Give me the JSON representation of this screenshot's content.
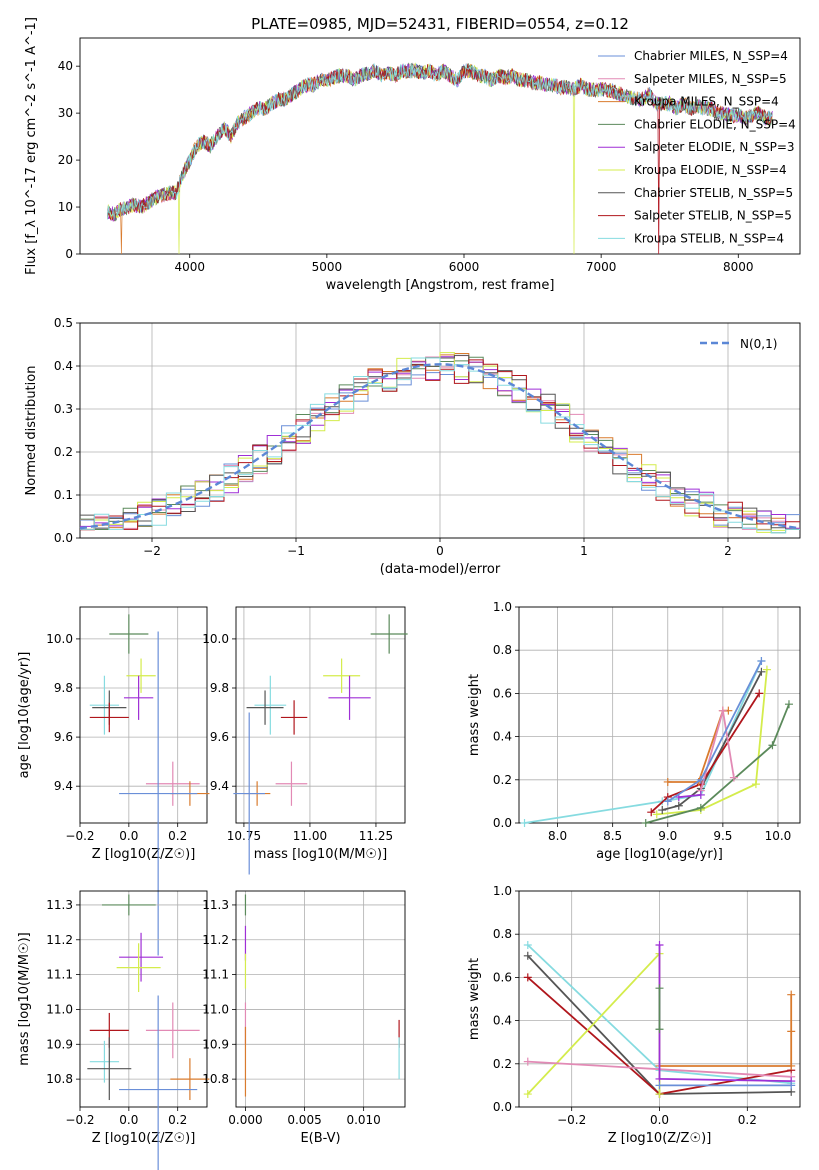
{
  "title": "PLATE=0985, MJD=52431, FIBERID=0554, z=0.12",
  "chart_data": [
    {
      "id": "spectrum",
      "type": "line",
      "xlabel": "wavelength [Angstrom, rest frame]",
      "ylabel": "Flux [f_λ 10^-17 erg cm^-2 s^-1 A^-1]",
      "xlim": [
        3200,
        8450
      ],
      "ylim": [
        0,
        46
      ],
      "xticks": [
        4000,
        5000,
        6000,
        7000,
        8000
      ],
      "yticks": [
        0,
        10,
        20,
        30,
        40
      ],
      "grid": false,
      "legend": "top-right",
      "spectrum_x": [
        3400,
        3450,
        3500,
        3550,
        3600,
        3650,
        3700,
        3750,
        3800,
        3850,
        3900,
        3950,
        4000,
        4050,
        4100,
        4150,
        4200,
        4250,
        4300,
        4350,
        4400,
        4450,
        4500,
        4550,
        4600,
        4650,
        4700,
        4750,
        4800,
        4850,
        4900,
        4950,
        5000,
        5050,
        5100,
        5150,
        5200,
        5250,
        5300,
        5350,
        5400,
        5450,
        5500,
        5550,
        5600,
        5650,
        5700,
        5750,
        5800,
        5850,
        5900,
        5950,
        6000,
        6050,
        6100,
        6150,
        6200,
        6250,
        6300,
        6350,
        6400,
        6450,
        6500,
        6550,
        6600,
        6650,
        6700,
        6750,
        6800,
        6850,
        6900,
        6950,
        7000,
        7050,
        7100,
        7150,
        7200,
        7250,
        7300,
        7350,
        7400,
        7450,
        7500,
        7550,
        7600,
        7650,
        7700,
        7750,
        7800,
        7850,
        7900,
        7950,
        8000,
        8050,
        8100,
        8150,
        8200,
        8250
      ],
      "spectrum_y": [
        9,
        8.5,
        9.5,
        10,
        10.5,
        10,
        11,
        12,
        12.5,
        13,
        13,
        17,
        20,
        23,
        24,
        23,
        25,
        27,
        25,
        28,
        29,
        30,
        31,
        31,
        32,
        33,
        33,
        34,
        35,
        36,
        36,
        37,
        37,
        37.5,
        38,
        38,
        37,
        38,
        38.5,
        39,
        38,
        38.5,
        38,
        39,
        39,
        39,
        38.5,
        39,
        38,
        39,
        38,
        37,
        39,
        39,
        38,
        38,
        37,
        38,
        37.5,
        38,
        37,
        37,
        36.5,
        36.5,
        36,
        36,
        35.5,
        35.5,
        35,
        36,
        35,
        35,
        35,
        35,
        34.5,
        34,
        33.5,
        33,
        33,
        34,
        32,
        32,
        32,
        31,
        32,
        31,
        31.5,
        31,
        31,
        30,
        30,
        29.5,
        29.5,
        29,
        29.5,
        30,
        29,
        29
      ],
      "series": [
        {
          "name": "Chabrier MILES, N_SSP=4",
          "color": "#6a8fd8"
        },
        {
          "name": "Salpeter MILES, N_SSP=5",
          "color": "#e28ab5"
        },
        {
          "name": "Kroupa MILES, N_SSP=4",
          "color": "#d97b2e"
        },
        {
          "name": "Chabrier ELODIE, N_SSP=4",
          "color": "#5b8a5b"
        },
        {
          "name": "Salpeter ELODIE, N_SSP=3",
          "color": "#9f2fd6"
        },
        {
          "name": "Kroupa ELODIE, N_SSP=4",
          "color": "#d4ec4c"
        },
        {
          "name": "Chabrier STELIB, N_SSP=5",
          "color": "#555555"
        },
        {
          "name": "Salpeter STELIB, N_SSP=5",
          "color": "#b0161c"
        },
        {
          "name": "Kroupa STELIB, N_SSP=4",
          "color": "#86dbe0"
        }
      ]
    },
    {
      "id": "residuals",
      "type": "line",
      "xlabel": "(data-model)/error",
      "ylabel": "Normed distribution",
      "xlim": [
        -2.5,
        2.5
      ],
      "ylim": [
        0,
        0.5
      ],
      "xticks": [
        -2,
        -1,
        0,
        1,
        2
      ],
      "yticks": [
        0.0,
        0.1,
        0.2,
        0.3,
        0.4,
        0.5
      ],
      "grid": true,
      "legend": "top-right",
      "legend_label": "N(0,1)",
      "bin_width": 0.1
    },
    {
      "id": "age_vs_Z",
      "type": "scatter",
      "xlabel": "Z [log10(Z/Z☉)]",
      "ylabel": "age [log10(age/yr)]",
      "xlim": [
        -0.2,
        0.32
      ],
      "ylim": [
        9.25,
        10.13
      ],
      "xticks": [
        -0.2,
        0.0,
        0.2
      ],
      "yticks": [
        9.4,
        9.6,
        9.8,
        10.0
      ],
      "grid": true,
      "points": [
        {
          "x": 0.0,
          "y": 10.02,
          "xerr": 0.08,
          "yerr": 0.08,
          "color": "#5b8a5b"
        },
        {
          "x": 0.05,
          "y": 9.85,
          "xerr": 0.06,
          "yerr": 0.07,
          "color": "#d4ec4c"
        },
        {
          "x": 0.04,
          "y": 9.76,
          "xerr": 0.06,
          "yerr": 0.09,
          "color": "#9f2fd6"
        },
        {
          "x": -0.1,
          "y": 9.73,
          "xerr": 0.06,
          "yerr": 0.12,
          "color": "#86dbe0"
        },
        {
          "x": -0.08,
          "y": 9.72,
          "xerr": 0.07,
          "yerr": 0.07,
          "color": "#555555"
        },
        {
          "x": -0.08,
          "y": 9.68,
          "xerr": 0.08,
          "yerr": 0.06,
          "color": "#b0161c"
        },
        {
          "x": 0.18,
          "y": 9.41,
          "xerr": 0.11,
          "yerr": 0.09,
          "color": "#e28ab5"
        },
        {
          "x": 0.25,
          "y": 9.37,
          "xerr": 0.08,
          "yerr": 0.05,
          "color": "#d97b2e"
        },
        {
          "x": 0.12,
          "y": 9.37,
          "xerr": 0.16,
          "yerr": 0.66,
          "color": "#6a8fd8"
        }
      ]
    },
    {
      "id": "age_vs_mass",
      "type": "scatter",
      "xlabel": "mass [log10(M/M☉)]",
      "ylabel": "",
      "xlim": [
        10.72,
        11.36
      ],
      "ylim": [
        9.25,
        10.13
      ],
      "xticks": [
        10.75,
        11.0,
        11.25
      ],
      "yticks": [
        9.4,
        9.6,
        9.8,
        10.0
      ],
      "grid": true,
      "points": [
        {
          "x": 11.3,
          "y": 10.02,
          "xerr": 0.07,
          "yerr": 0.08,
          "color": "#5b8a5b"
        },
        {
          "x": 11.12,
          "y": 9.85,
          "xerr": 0.07,
          "yerr": 0.07,
          "color": "#d4ec4c"
        },
        {
          "x": 11.15,
          "y": 9.76,
          "xerr": 0.08,
          "yerr": 0.09,
          "color": "#9f2fd6"
        },
        {
          "x": 10.85,
          "y": 9.73,
          "xerr": 0.06,
          "yerr": 0.12,
          "color": "#86dbe0"
        },
        {
          "x": 10.83,
          "y": 9.72,
          "xerr": 0.07,
          "yerr": 0.07,
          "color": "#555555"
        },
        {
          "x": 10.94,
          "y": 9.68,
          "xerr": 0.05,
          "yerr": 0.07,
          "color": "#b0161c"
        },
        {
          "x": 10.93,
          "y": 9.41,
          "xerr": 0.06,
          "yerr": 0.09,
          "color": "#e28ab5"
        },
        {
          "x": 10.8,
          "y": 9.37,
          "xerr": 0.05,
          "yerr": 0.05,
          "color": "#d97b2e"
        },
        {
          "x": 10.77,
          "y": 9.37,
          "xerr": 0.06,
          "yerr": 0.33,
          "color": "#6a8fd8"
        }
      ]
    },
    {
      "id": "weight_vs_age",
      "type": "line",
      "xlabel": "age [log10(age/yr)]",
      "ylabel": "mass weight",
      "xlim": [
        7.65,
        10.2
      ],
      "ylim": [
        0,
        1.0
      ],
      "xticks": [
        8.0,
        8.5,
        9.0,
        9.5,
        10.0
      ],
      "yticks": [
        0.0,
        0.2,
        0.4,
        0.6,
        0.8,
        1.0
      ],
      "grid": true,
      "series": [
        {
          "color": "#86dbe0",
          "x": [
            7.7,
            8.95,
            9.3,
            9.85
          ],
          "y": [
            0.0,
            0.1,
            0.13,
            0.75
          ]
        },
        {
          "color": "#d4ec4c",
          "x": [
            8.9,
            9.3,
            9.8,
            9.9
          ],
          "y": [
            0.04,
            0.06,
            0.18,
            0.71
          ]
        },
        {
          "color": "#5b8a5b",
          "x": [
            8.8,
            9.3,
            9.95,
            10.1
          ],
          "y": [
            0.0,
            0.07,
            0.36,
            0.55
          ]
        },
        {
          "color": "#555555",
          "x": [
            8.95,
            9.1,
            9.3,
            9.85
          ],
          "y": [
            0.06,
            0.08,
            0.16,
            0.7
          ]
        },
        {
          "color": "#b0161c",
          "x": [
            8.85,
            9.0,
            9.3,
            9.83
          ],
          "y": [
            0.05,
            0.12,
            0.18,
            0.6
          ]
        },
        {
          "color": "#d97b2e",
          "x": [
            9.0,
            9.28,
            9.5,
            9.55
          ],
          "y": [
            0.19,
            0.19,
            0.52,
            0.52
          ]
        },
        {
          "color": "#e28ab5",
          "x": [
            9.3,
            9.5,
            9.6
          ],
          "y": [
            0.15,
            0.52,
            0.21
          ]
        },
        {
          "color": "#9f2fd6",
          "x": [
            9.1,
            9.3
          ],
          "y": [
            0.12,
            0.13
          ]
        },
        {
          "color": "#6a8fd8",
          "x": [
            9.0,
            9.3,
            9.85
          ],
          "y": [
            0.1,
            0.2,
            0.75
          ]
        }
      ]
    },
    {
      "id": "mass_vs_Z",
      "type": "scatter",
      "xlabel": "Z [log10(Z/Z☉)]",
      "ylabel": "mass [log10(M/M☉)]",
      "xlim": [
        -0.2,
        0.32
      ],
      "ylim": [
        10.72,
        11.34
      ],
      "xticks": [
        -0.2,
        0.0,
        0.2
      ],
      "yticks": [
        10.8,
        10.9,
        11.0,
        11.1,
        11.2,
        11.3
      ],
      "grid": true,
      "points": [
        {
          "x": 0.0,
          "y": 11.3,
          "xerr": 0.11,
          "yerr": 0.03,
          "color": "#5b8a5b"
        },
        {
          "x": 0.05,
          "y": 11.15,
          "xerr": 0.09,
          "yerr": 0.07,
          "color": "#9f2fd6"
        },
        {
          "x": 0.04,
          "y": 11.12,
          "xerr": 0.09,
          "yerr": 0.07,
          "color": "#d4ec4c"
        },
        {
          "x": -0.08,
          "y": 10.94,
          "xerr": 0.08,
          "yerr": 0.05,
          "color": "#b0161c"
        },
        {
          "x": 0.18,
          "y": 10.94,
          "xerr": 0.11,
          "yerr": 0.08,
          "color": "#e28ab5"
        },
        {
          "x": -0.1,
          "y": 10.85,
          "xerr": 0.06,
          "yerr": 0.06,
          "color": "#86dbe0"
        },
        {
          "x": -0.08,
          "y": 10.83,
          "xerr": 0.09,
          "yerr": 0.09,
          "color": "#555555"
        },
        {
          "x": 0.25,
          "y": 10.8,
          "xerr": 0.08,
          "yerr": 0.06,
          "color": "#d97b2e"
        },
        {
          "x": 0.12,
          "y": 10.77,
          "xerr": 0.16,
          "yerr": 0.27,
          "color": "#6a8fd8"
        }
      ]
    },
    {
      "id": "mass_vs_EBV",
      "type": "scatter",
      "xlabel": "E(B-V)",
      "ylabel": "",
      "xlim": [
        -0.0008,
        0.0135
      ],
      "ylim": [
        10.72,
        11.34
      ],
      "xticks": [
        0.0,
        0.005,
        0.01
      ],
      "xtick_labels": [
        "0.000",
        "0.005",
        "0.010"
      ],
      "yticks": [
        10.8,
        10.9,
        11.0,
        11.1,
        11.2,
        11.3
      ],
      "grid": true,
      "points": [
        {
          "x": 0.0,
          "y": 11.3,
          "xerr": 0.0,
          "yerr": 0.03,
          "color": "#5b8a5b"
        },
        {
          "x": 0.0,
          "y": 11.19,
          "xerr": 0.0,
          "yerr": 0.05,
          "color": "#9f2fd6"
        },
        {
          "x": 0.0,
          "y": 11.11,
          "xerr": 0.0,
          "yerr": 0.05,
          "color": "#d4ec4c"
        },
        {
          "x": 0.0,
          "y": 10.96,
          "xerr": 0.0,
          "yerr": 0.06,
          "color": "#e28ab5"
        },
        {
          "x": 0.0,
          "y": 10.85,
          "xerr": 0.0,
          "yerr": 0.1,
          "color": "#d97b2e"
        },
        {
          "x": 0.013,
          "y": 10.93,
          "xerr": 0.0,
          "yerr": 0.04,
          "color": "#b0161c"
        },
        {
          "x": 0.013,
          "y": 10.86,
          "xerr": 0.0,
          "yerr": 0.06,
          "color": "#86dbe0"
        }
      ]
    },
    {
      "id": "weight_vs_Z",
      "type": "line",
      "xlabel": "Z [log10(Z/Z☉)]",
      "ylabel": "mass weight",
      "xlim": [
        -0.32,
        0.32
      ],
      "ylim": [
        0,
        1.0
      ],
      "xticks": [
        -0.2,
        0.0,
        0.2
      ],
      "yticks": [
        0.0,
        0.2,
        0.4,
        0.6,
        0.8,
        1.0
      ],
      "grid": true,
      "series": [
        {
          "color": "#86dbe0",
          "x": [
            -0.3,
            0.0,
            0.3
          ],
          "y": [
            0.75,
            0.17,
            0.11
          ]
        },
        {
          "color": "#555555",
          "x": [
            -0.3,
            0.0,
            0.3
          ],
          "y": [
            0.7,
            0.06,
            0.07
          ]
        },
        {
          "color": "#b0161c",
          "x": [
            -0.3,
            0.0,
            0.3
          ],
          "y": [
            0.6,
            0.06,
            0.17
          ]
        },
        {
          "color": "#d4ec4c",
          "x": [
            -0.3,
            0.0,
            0.0
          ],
          "y": [
            0.06,
            0.71,
            0.06
          ]
        },
        {
          "color": "#e28ab5",
          "x": [
            -0.3,
            0.3
          ],
          "y": [
            0.21,
            0.14
          ]
        },
        {
          "color": "#d97b2e",
          "x": [
            0.0,
            0.3,
            0.3,
            0.3
          ],
          "y": [
            0.19,
            0.19,
            0.35,
            0.52
          ]
        },
        {
          "color": "#9f2fd6",
          "x": [
            0.0,
            0.0,
            0.3
          ],
          "y": [
            0.75,
            0.13,
            0.12
          ]
        },
        {
          "color": "#5b8a5b",
          "x": [
            0.0,
            0.0
          ],
          "y": [
            0.55,
            0.36
          ]
        },
        {
          "color": "#6a8fd8",
          "x": [
            0.0,
            0.3
          ],
          "y": [
            0.1,
            0.1
          ]
        }
      ]
    }
  ]
}
